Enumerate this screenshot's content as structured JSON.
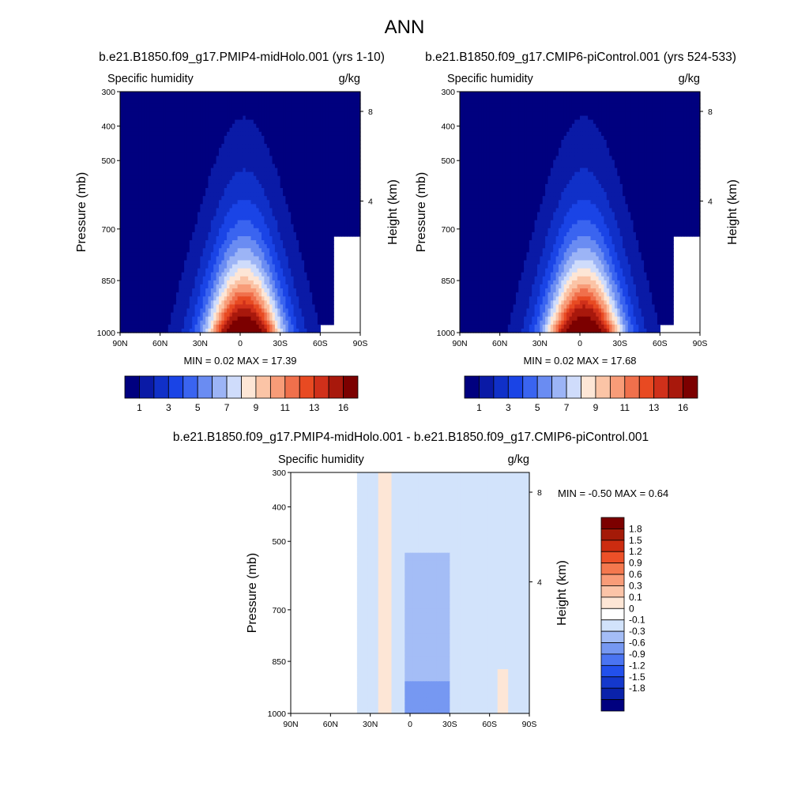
{
  "page": {
    "title": "ANN",
    "top_left_title": "b.e21.B1850.f09_g17.PMIP4-midHolo.001 (yrs 1-10)",
    "top_right_title": "b.e21.B1850.f09_g17.CMIP6-piControl.001 (yrs 524-533)",
    "diff_title": "b.e21.B1850.f09_g17.PMIP4-midHolo.001 - b.e21.B1850.f09_g17.CMIP6-piControl.001"
  },
  "colors": {
    "main_scale": [
      "#00007f",
      "#0a1aa6",
      "#1030c8",
      "#1a44e6",
      "#3a64f0",
      "#6a8cf2",
      "#9cb4f6",
      "#cfdcfb",
      "#fde6d6",
      "#fbc4a6",
      "#f89c78",
      "#f0704c",
      "#e84a22",
      "#d0301a",
      "#a8180c",
      "#7c0000"
    ],
    "diff_scale": [
      "#00007f",
      "#0a22aa",
      "#1438cc",
      "#2250ec",
      "#4a74f2",
      "#7698f2",
      "#a4bdf6",
      "#d2e3fb",
      "#ffffff",
      "#fde6d6",
      "#fcc4a8",
      "#f99c78",
      "#f4784e",
      "#ec5028",
      "#cc2c10",
      "#a41a08",
      "#7c0000"
    ]
  },
  "chart_data": [
    {
      "type": "heatmap",
      "id": "midHolo",
      "title": "b.e21.B1850.f09_g17.PMIP4-midHolo.001 (yrs 1-10)",
      "left_label": "Specific humidity",
      "right_label": "g/kg",
      "xlabel": "",
      "ylabel": "Pressure (mb)",
      "y2label": "Height (km)",
      "x_ticks": [
        "90N",
        "60N",
        "30N",
        "0",
        "30S",
        "60S",
        "90S"
      ],
      "y_ticks": [
        "300",
        "400",
        "500",
        "700",
        "850",
        "1000"
      ],
      "y2_ticks": [
        "8",
        "4"
      ],
      "x_range": [
        -90,
        90
      ],
      "y_range_mb": [
        1000,
        300
      ],
      "min": 0.02,
      "max": 17.39,
      "stats_label": "MIN =   0.02  MAX =  17.39",
      "contour_levels": [
        1,
        2,
        3,
        4,
        5,
        6,
        7,
        8,
        9,
        10,
        11,
        12,
        13,
        14,
        16
      ],
      "colorbar_labels": [
        "1",
        "3",
        "5",
        "7",
        "9",
        "11",
        "13",
        "16"
      ]
    },
    {
      "type": "heatmap",
      "id": "piControl",
      "title": "b.e21.B1850.f09_g17.CMIP6-piControl.001 (yrs 524-533)",
      "left_label": "Specific humidity",
      "right_label": "g/kg",
      "xlabel": "",
      "ylabel": "Pressure (mb)",
      "y2label": "Height (km)",
      "x_ticks": [
        "90N",
        "60N",
        "30N",
        "0",
        "30S",
        "60S",
        "90S"
      ],
      "y_ticks": [
        "300",
        "400",
        "500",
        "700",
        "850",
        "1000"
      ],
      "y2_ticks": [
        "8",
        "4"
      ],
      "x_range": [
        -90,
        90
      ],
      "y_range_mb": [
        1000,
        300
      ],
      "min": 0.02,
      "max": 17.68,
      "stats_label": "MIN =   0.02  MAX =  17.68",
      "contour_levels": [
        1,
        2,
        3,
        4,
        5,
        6,
        7,
        8,
        9,
        10,
        11,
        12,
        13,
        14,
        16
      ],
      "colorbar_labels": [
        "1",
        "3",
        "5",
        "7",
        "9",
        "11",
        "13",
        "16"
      ]
    },
    {
      "type": "heatmap",
      "id": "difference",
      "title": "b.e21.B1850.f09_g17.PMIP4-midHolo.001 - b.e21.B1850.f09_g17.CMIP6-piControl.001",
      "left_label": "Specific humidity",
      "right_label": "g/kg",
      "xlabel": "",
      "ylabel": "Pressure (mb)",
      "y2label": "Height (km)",
      "x_ticks": [
        "90N",
        "60N",
        "30N",
        "0",
        "30S",
        "60S",
        "90S"
      ],
      "y_ticks": [
        "300",
        "400",
        "500",
        "700",
        "850",
        "1000"
      ],
      "y2_ticks": [
        "8",
        "4"
      ],
      "x_range": [
        -90,
        90
      ],
      "y_range_mb": [
        1000,
        300
      ],
      "min": -0.5,
      "max": 0.64,
      "stats_label": "MIN =  -0.50  MAX =   0.64",
      "contour_levels": [
        -1.8,
        -1.5,
        -1.2,
        -0.9,
        -0.6,
        -0.3,
        -0.1,
        0,
        0.1,
        0.3,
        0.6,
        0.9,
        1.2,
        1.5,
        1.8
      ],
      "colorbar_labels": [
        "1.8",
        "1.5",
        "1.2",
        "0.9",
        "0.6",
        "0.3",
        "0.1",
        "0",
        "-0.1",
        "-0.3",
        "-0.6",
        "-0.9",
        "-1.2",
        "-1.5",
        "-1.8"
      ]
    }
  ]
}
